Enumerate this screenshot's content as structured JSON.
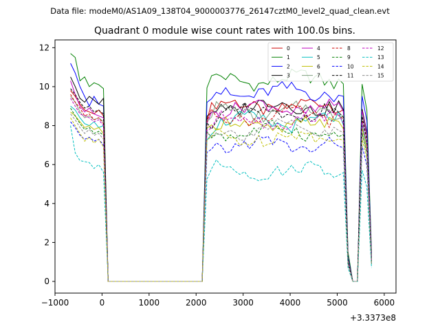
{
  "header": {
    "data_file": "Data file: modeM0/AS1A09_138T04_9000003776_26147cztM0_level2_quad_clean.evt"
  },
  "chart_data": {
    "type": "line",
    "title": "Quadrant 0 module wise count rates with 100.0s bins.",
    "xlabel": "",
    "ylabel": "",
    "x_offset_label": "+3.3373e8",
    "xlim": [
      -1000,
      6250
    ],
    "ylim": [
      -0.6,
      12.4
    ],
    "x_ticks": [
      -1000,
      0,
      1000,
      2000,
      3000,
      4000,
      5000,
      6000
    ],
    "x_tick_labels": [
      "−1000",
      "0",
      "1000",
      "2000",
      "3000",
      "4000",
      "5000",
      "6000"
    ],
    "y_ticks": [
      0,
      2,
      4,
      6,
      8,
      10,
      12
    ],
    "y_tick_labels": [
      "0",
      "2",
      "4",
      "6",
      "8",
      "10",
      "12"
    ],
    "legend": {
      "placement": "top-right",
      "columns": 4
    },
    "segments": [
      {
        "x_start": -670,
        "x_end": 130,
        "step": 100
      },
      {
        "x_start": 130,
        "x_end": 2130,
        "step": 100
      },
      {
        "x_start": 2130,
        "x_end": 5230,
        "step": 100
      },
      {
        "x_start": 5230,
        "x_end": 5530,
        "step": 100
      },
      {
        "x_start": 5530,
        "x_end": 5730,
        "step": 100
      },
      {
        "x_start": 5730,
        "x_end": 5930,
        "step": 100
      }
    ],
    "series": [
      {
        "name": "0",
        "color": "#cc0000",
        "dash": "solid",
        "level": 9.0,
        "pre": [
          9.8,
          9.5,
          9.1,
          8.8,
          8.7,
          8.6,
          8.8,
          8.5,
          0.0
        ],
        "post_end": 1.0
      },
      {
        "name": "1",
        "color": "#008000",
        "dash": "solid",
        "level": 10.35,
        "pre": [
          11.7,
          11.5,
          10.3,
          10.5,
          10.0,
          10.2,
          10.1,
          9.9,
          0.0
        ],
        "post_end": 1.5
      },
      {
        "name": "2",
        "color": "#0000ff",
        "dash": "solid",
        "level": 9.7,
        "pre": [
          11.2,
          10.7,
          10.0,
          9.5,
          9.0,
          9.5,
          9.1,
          9.0,
          0.0
        ],
        "post_end": 1.3
      },
      {
        "name": "3",
        "color": "#000000",
        "dash": "solid",
        "level": 9.0,
        "pre": [
          10.5,
          10.0,
          9.4,
          9.2,
          9.5,
          9.3,
          9.1,
          9.4,
          0.0
        ],
        "post_end": 1.2
      },
      {
        "name": "4",
        "color": "#bf00bf",
        "dash": "solid",
        "level": 8.9,
        "pre": [
          10.3,
          9.6,
          9.0,
          8.7,
          8.9,
          8.6,
          8.5,
          8.4,
          0.0
        ],
        "post_end": 1.1
      },
      {
        "name": "5",
        "color": "#00bfbf",
        "dash": "solid",
        "level": 8.2,
        "pre": [
          9.0,
          8.8,
          8.4,
          8.1,
          8.0,
          8.2,
          7.9,
          8.0,
          0.0
        ],
        "post_end": 1.0
      },
      {
        "name": "6",
        "color": "#bfbf00",
        "dash": "solid",
        "level": 8.0,
        "pre": [
          8.7,
          8.5,
          8.2,
          7.9,
          8.0,
          7.8,
          7.9,
          7.6,
          0.0
        ],
        "post_end": 1.0
      },
      {
        "name": "7",
        "color": "#7f9f7f",
        "dash": "solid",
        "level": 8.7,
        "pre": [
          9.5,
          9.2,
          8.7,
          8.4,
          8.5,
          8.3,
          8.4,
          8.2,
          0.0
        ],
        "post_end": 1.1
      },
      {
        "name": "8",
        "color": "#cc0000",
        "dash": "dashed",
        "level": 8.5,
        "pre": [
          9.6,
          9.2,
          8.9,
          8.5,
          8.6,
          8.3,
          8.4,
          8.1,
          0.0
        ],
        "post_end": 1.0
      },
      {
        "name": "9",
        "color": "#008000",
        "dash": "dashed",
        "level": 7.7,
        "pre": [
          8.9,
          8.5,
          8.1,
          7.8,
          7.9,
          7.6,
          7.7,
          7.5,
          0.0
        ],
        "post_end": 0.9
      },
      {
        "name": "10",
        "color": "#0000ff",
        "dash": "dashed",
        "level": 7.0,
        "pre": [
          8.2,
          7.9,
          7.5,
          7.3,
          7.4,
          7.2,
          7.3,
          7.0,
          0.0
        ],
        "post_end": 0.9
      },
      {
        "name": "11",
        "color": "#000000",
        "dash": "dashed",
        "level": 8.6,
        "pre": [
          9.9,
          9.6,
          9.2,
          8.9,
          9.0,
          8.7,
          8.8,
          8.6,
          0.0
        ],
        "post_end": 1.0
      },
      {
        "name": "12",
        "color": "#bf00bf",
        "dash": "dashed",
        "level": 8.3,
        "pre": [
          9.4,
          9.0,
          8.6,
          8.5,
          8.4,
          8.2,
          8.3,
          8.0,
          0.0
        ],
        "post_end": 1.0
      },
      {
        "name": "13",
        "color": "#00bfbf",
        "dash": "dashed",
        "level": 5.7,
        "pre": [
          8.0,
          6.6,
          6.2,
          6.15,
          6.1,
          5.8,
          6.0,
          5.6,
          0.0
        ],
        "post_end": 0.7
      },
      {
        "name": "14",
        "color": "#bfbf00",
        "dash": "dashed",
        "level": 7.4,
        "pre": [
          8.4,
          8.0,
          7.6,
          7.2,
          7.4,
          7.1,
          7.3,
          6.9,
          0.0
        ],
        "post_end": 0.9
      },
      {
        "name": "15",
        "color": "#8c8c8c",
        "dash": "dashed",
        "level": 7.8,
        "pre": [
          8.6,
          8.3,
          7.9,
          7.6,
          7.8,
          7.5,
          7.6,
          7.3,
          0.0
        ],
        "post_end": 0.9
      }
    ]
  }
}
